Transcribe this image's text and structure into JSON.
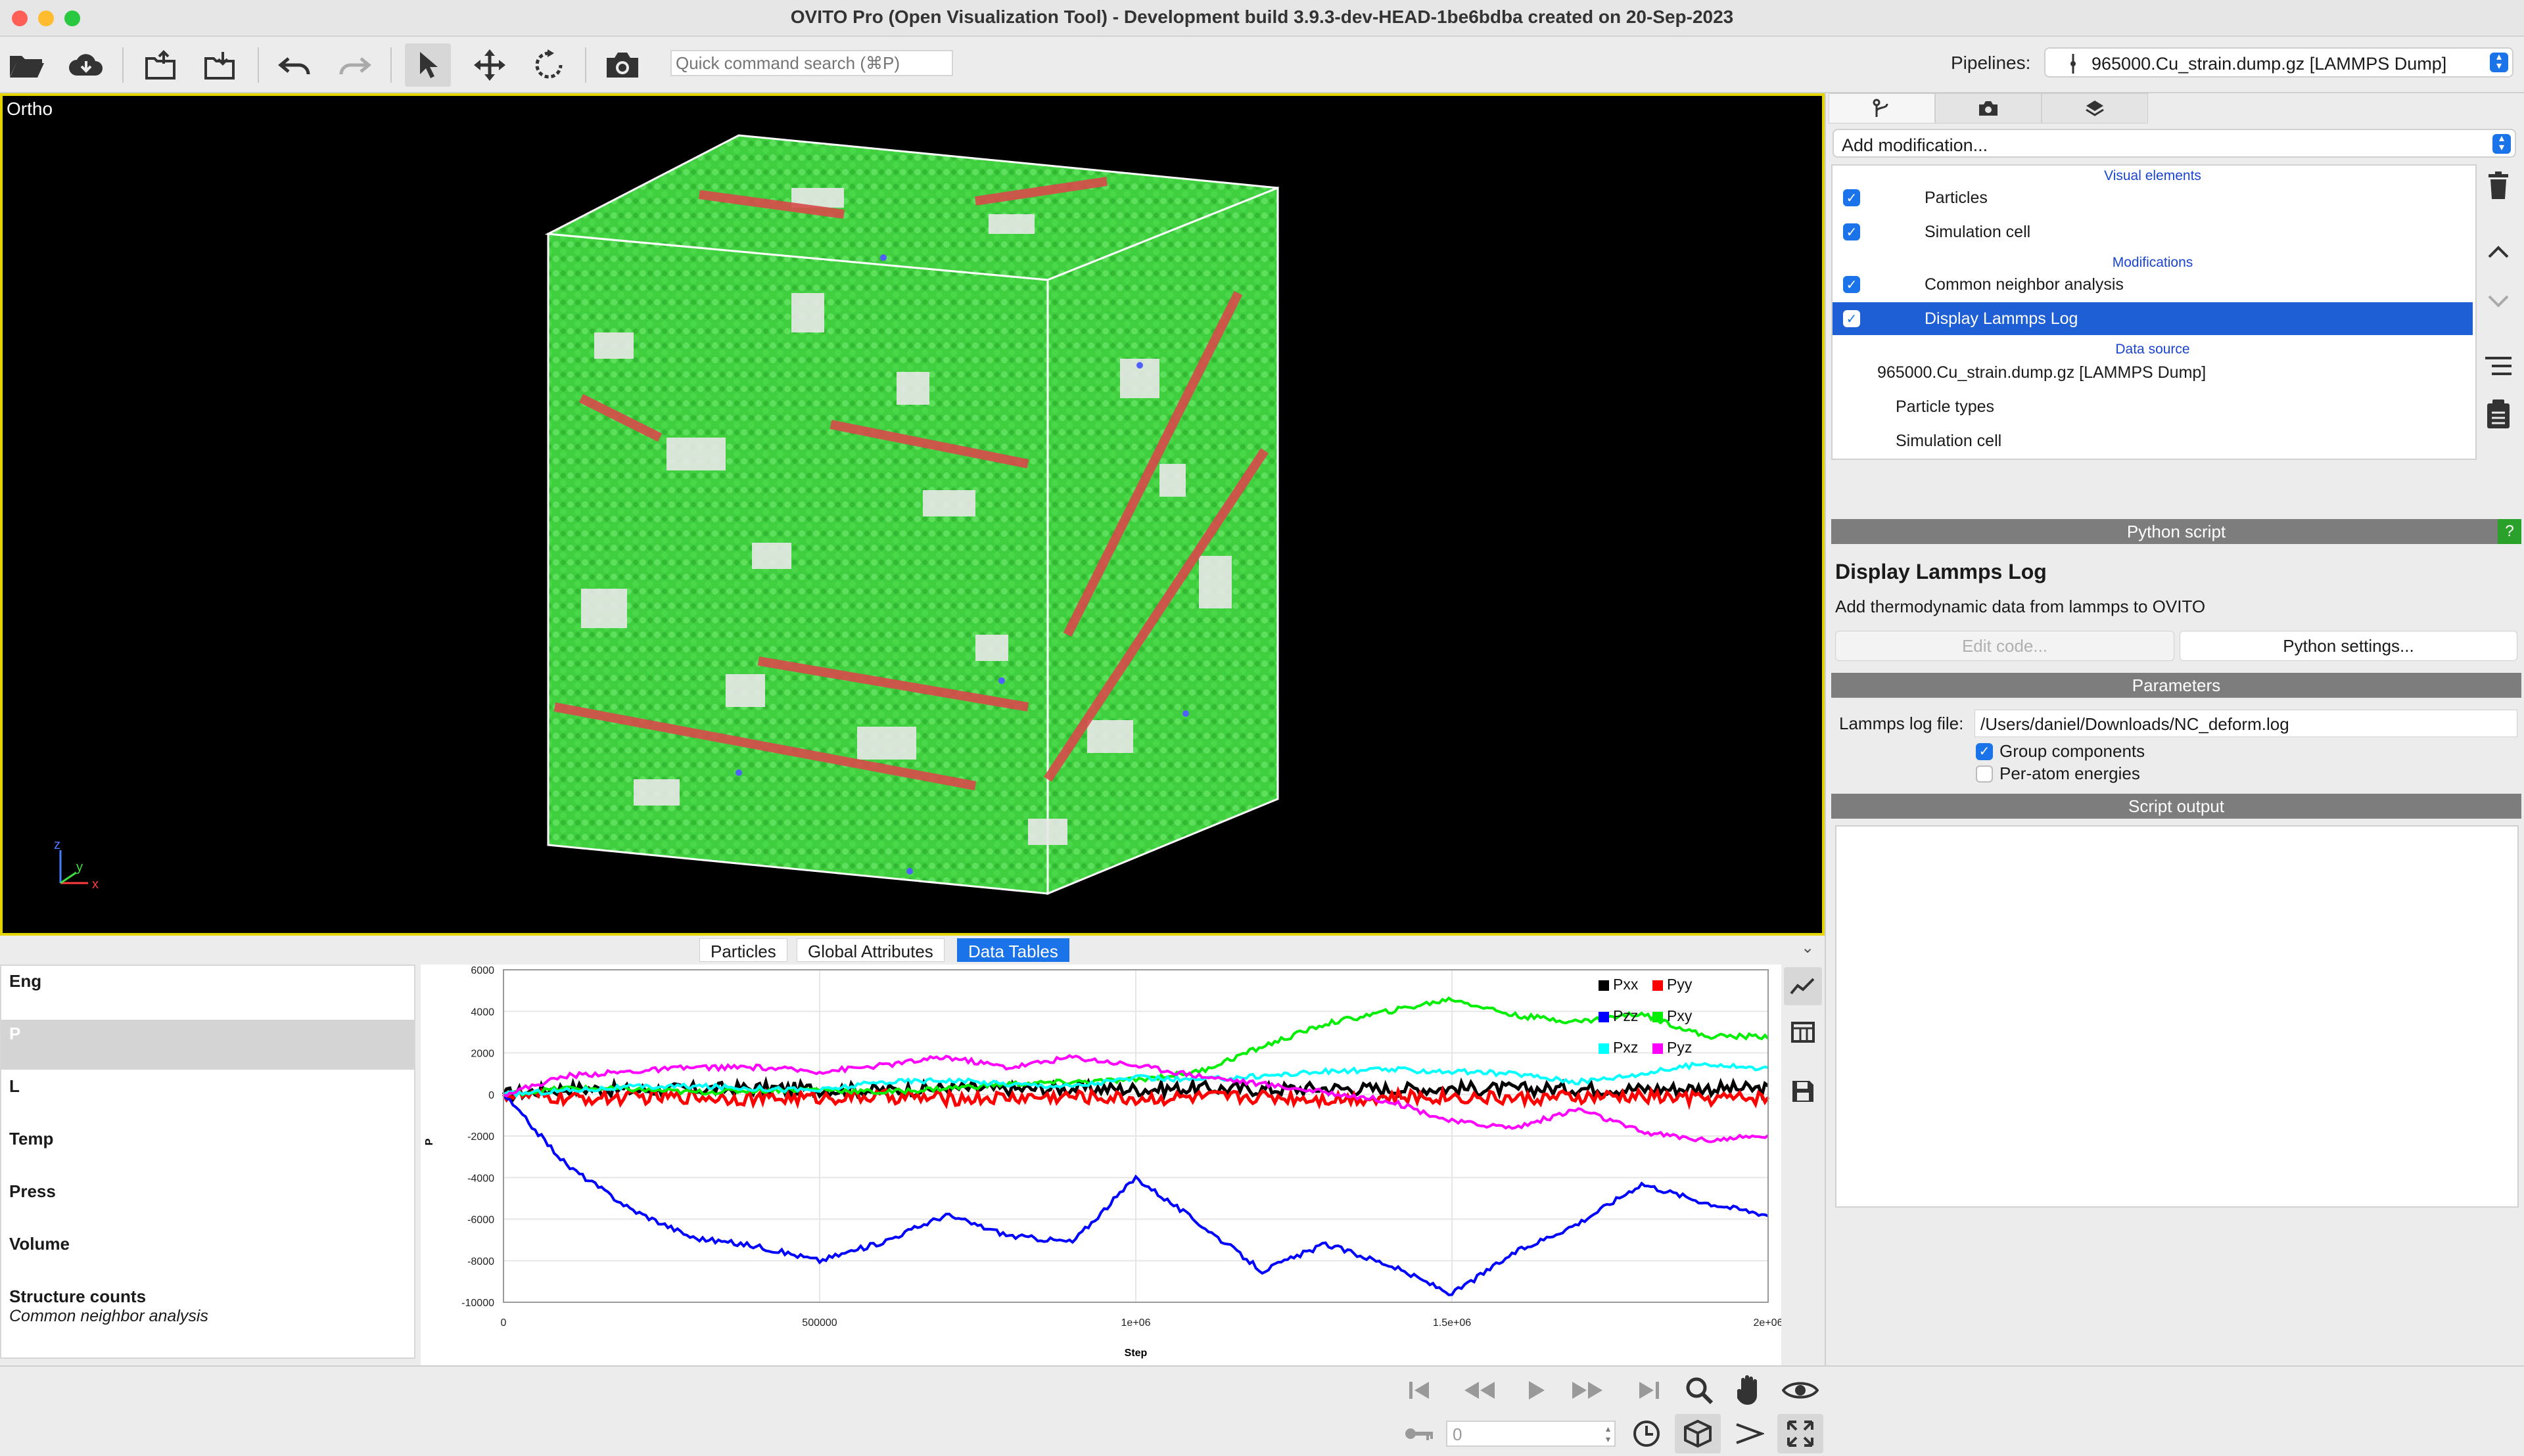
{
  "window": {
    "title": "OVITO Pro (Open Visualization Tool) - Development build 3.9.3-dev-HEAD-1be6bdba created on 20-Sep-2023"
  },
  "toolbar": {
    "search_placeholder": "Quick command search (⌘P)",
    "pipelines_label": "Pipelines:",
    "pipeline_selected": "965000.Cu_strain.dump.gz [LAMMPS Dump]"
  },
  "viewport": {
    "label": "Ortho",
    "axis_labels": [
      "z",
      "y",
      "x"
    ]
  },
  "data_inspector": {
    "tabs": [
      "Particles",
      "Global Attributes",
      "Data Tables"
    ],
    "selected_tab": "Data Tables",
    "tables": [
      {
        "name": "Eng",
        "sub": ""
      },
      {
        "name": "P",
        "sub": ""
      },
      {
        "name": "L",
        "sub": ""
      },
      {
        "name": "Temp",
        "sub": ""
      },
      {
        "name": "Press",
        "sub": ""
      },
      {
        "name": "Volume",
        "sub": ""
      },
      {
        "name": "Structure counts",
        "sub": "Common neighbor analysis"
      }
    ],
    "selected_table": "P"
  },
  "chart_data": {
    "type": "line",
    "title": "",
    "xlabel": "Step",
    "ylabel": "P",
    "xlim": [
      0,
      2000000
    ],
    "ylim": [
      -10000,
      6000
    ],
    "x_tick_labels": [
      "0",
      "500000",
      "1e+06",
      "1.5e+06",
      "2e+06"
    ],
    "y_tick_labels": [
      "6000",
      "4000",
      "2000",
      "0",
      "-2000",
      "-4000",
      "-6000",
      "-8000",
      "-10000"
    ],
    "grid": true,
    "legend_position": "top-right",
    "x": [
      0,
      100000,
      200000,
      300000,
      400000,
      500000,
      600000,
      700000,
      800000,
      900000,
      1000000,
      1100000,
      1200000,
      1300000,
      1400000,
      1500000,
      1600000,
      1700000,
      1800000,
      1900000,
      2000000
    ],
    "series": [
      {
        "name": "Pxx",
        "color": "#000000",
        "values": [
          0,
          300,
          200,
          250,
          300,
          250,
          200,
          300,
          250,
          300,
          250,
          300,
          250,
          300,
          250,
          300,
          250,
          300,
          250,
          300,
          250
        ]
      },
      {
        "name": "Pyy",
        "color": "#ff0000",
        "values": [
          0,
          -200,
          -150,
          -100,
          -200,
          -150,
          -100,
          -200,
          -150,
          -100,
          -200,
          -150,
          -100,
          -200,
          -150,
          -100,
          -200,
          -150,
          -100,
          -200,
          -150
        ]
      },
      {
        "name": "Pzz",
        "color": "#0000ff",
        "values": [
          0,
          -3400,
          -5500,
          -6900,
          -7300,
          -8000,
          -7100,
          -5800,
          -6800,
          -7100,
          -4000,
          -6200,
          -8500,
          -7200,
          -8200,
          -9600,
          -7600,
          -6200,
          -4300,
          -5200,
          -5800
        ]
      },
      {
        "name": "Pxy",
        "color": "#00ee00",
        "values": [
          0,
          300,
          250,
          100,
          200,
          250,
          100,
          300,
          500,
          600,
          700,
          1100,
          2300,
          3400,
          4000,
          4600,
          3800,
          3500,
          3900,
          2800,
          2800
        ]
      },
      {
        "name": "Pxz",
        "color": "#00ffff",
        "values": [
          0,
          200,
          350,
          400,
          300,
          200,
          600,
          700,
          500,
          400,
          800,
          700,
          900,
          1100,
          1200,
          1100,
          1000,
          600,
          1000,
          1500,
          1200
        ]
      },
      {
        "name": "Pyz",
        "color": "#ff00ff",
        "values": [
          0,
          900,
          1100,
          1300,
          1300,
          1100,
          1400,
          1800,
          1300,
          1800,
          1400,
          900,
          500,
          100,
          -300,
          -1300,
          -1600,
          -700,
          -1800,
          -2200,
          -2000
        ]
      }
    ]
  },
  "right_panel": {
    "add_modification": "Add modification...",
    "sections": {
      "visual_elements": "Visual elements",
      "modifications": "Modifications",
      "data_source": "Data source"
    },
    "visual_elements": [
      {
        "label": "Particles",
        "checked": true
      },
      {
        "label": "Simulation cell",
        "checked": true
      }
    ],
    "modifications": [
      {
        "label": "Common neighbor analysis",
        "checked": true
      },
      {
        "label": "Display Lammps Log",
        "checked": true,
        "selected": true
      }
    ],
    "data_source": {
      "file": "965000.Cu_strain.dump.gz [LAMMPS Dump]",
      "children": [
        "Particle types",
        "Simulation cell"
      ]
    },
    "python_script_header": "Python script",
    "help_badge": "?",
    "modifier_title": "Display Lammps Log",
    "modifier_description": "Add thermodynamic data from lammps to OVITO",
    "edit_code_button": "Edit code...",
    "python_settings_button": "Python settings...",
    "parameters_header": "Parameters",
    "log_file_label": "Lammps log file:",
    "log_file_value": "/Users/daniel/Downloads/NC_deform.log",
    "group_components_label": "Group components",
    "group_components_checked": true,
    "per_atom_energies_label": "Per-atom energies",
    "per_atom_energies_checked": false,
    "script_output_header": "Script output"
  },
  "animation": {
    "frame_value": "0"
  }
}
